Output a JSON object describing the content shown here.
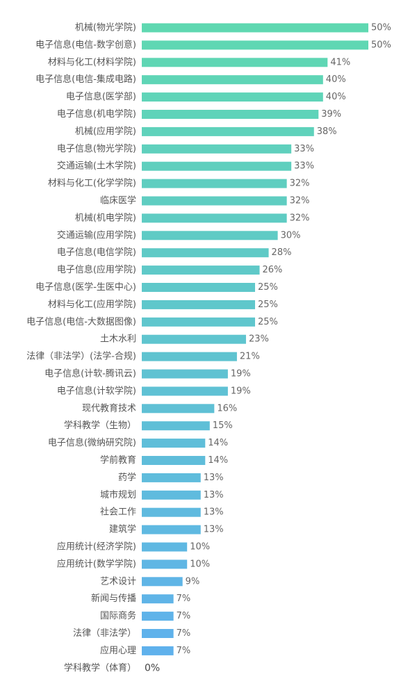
{
  "chart_data": {
    "type": "bar",
    "orientation": "horizontal",
    "title": "",
    "xlabel": "",
    "ylabel": "",
    "xlim": [
      0,
      50
    ],
    "grid": false,
    "legend": "none",
    "value_suffix": "%",
    "color_gradient": [
      "#5fd8b1",
      "#5fb0ee"
    ],
    "categories": [
      "机械(物光学院)",
      "电子信息(电信-数字创意)",
      "材料与化工(材料学院)",
      "电子信息(电信-集成电路)",
      "电子信息(医学部)",
      "电子信息(机电学院)",
      "机械(应用学院)",
      "电子信息(物光学院)",
      "交通运输(土木学院)",
      "材料与化工(化学学院)",
      "临床医学",
      "机械(机电学院)",
      "交通运输(应用学院)",
      "电子信息(电信学院)",
      "电子信息(应用学院)",
      "电子信息(医学-生医中心)",
      "材料与化工(应用学院)",
      "电子信息(电信-大数据图像)",
      "土木水利",
      "法律（非法学）(法学-合规)",
      "电子信息(计软-腾讯云)",
      "电子信息(计软学院)",
      "现代教育技术",
      "学科教学（生物）",
      "电子信息(微纳研究院)",
      "学前教育",
      "药学",
      "城市规划",
      "社会工作",
      "建筑学",
      "应用统计(经济学院)",
      "应用统计(数学学院)",
      "艺术设计",
      "新闻与传播",
      "国际商务",
      "法律（非法学）",
      "应用心理",
      "学科教学（体育）"
    ],
    "values": [
      50,
      50,
      41,
      40,
      40,
      39,
      38,
      33,
      33,
      32,
      32,
      32,
      30,
      28,
      26,
      25,
      25,
      25,
      23,
      21,
      19,
      19,
      16,
      15,
      14,
      14,
      13,
      13,
      13,
      13,
      10,
      10,
      9,
      7,
      7,
      7,
      7,
      0
    ]
  }
}
